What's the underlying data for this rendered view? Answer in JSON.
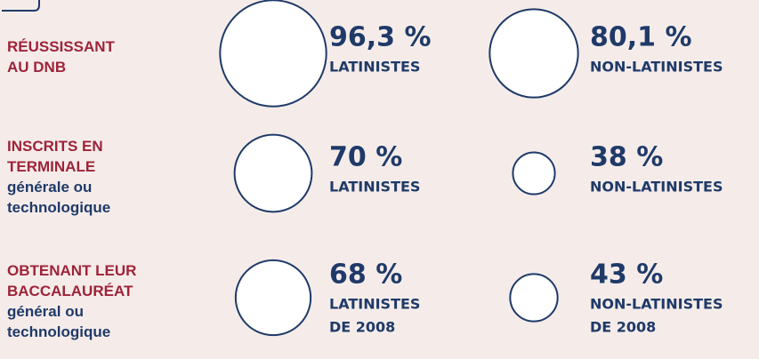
{
  "rows": [
    {
      "label_upper": [
        "RÉUSSISSANT",
        "AU DNB"
      ],
      "label_lower": [],
      "items": [
        {
          "value": 96.3,
          "value_label": "96,3 %",
          "caption": [
            "LATINISTES"
          ]
        },
        {
          "value": 80.1,
          "value_label": "80,1 %",
          "caption": [
            "NON-LATINISTES"
          ]
        }
      ]
    },
    {
      "label_upper": [
        "INSCRITS EN",
        "TERMINALE"
      ],
      "label_lower": [
        "générale ou",
        "technologique"
      ],
      "items": [
        {
          "value": 70,
          "value_label": "70 %",
          "caption": [
            "LATINISTES"
          ]
        },
        {
          "value": 38,
          "value_label": "38 %",
          "caption": [
            "NON-LATINISTES"
          ]
        }
      ]
    },
    {
      "label_upper": [
        "OBTENANT LEUR",
        "BACCALAURÉAT"
      ],
      "label_lower": [
        "général ou",
        "technologique"
      ],
      "items": [
        {
          "value": 68,
          "value_label": "68 %",
          "caption": [
            "LATINISTES",
            "DE 2008"
          ]
        },
        {
          "value": 43,
          "value_label": "43 %",
          "caption": [
            "NON-LATINISTES",
            "DE 2008"
          ]
        }
      ]
    }
  ]
}
